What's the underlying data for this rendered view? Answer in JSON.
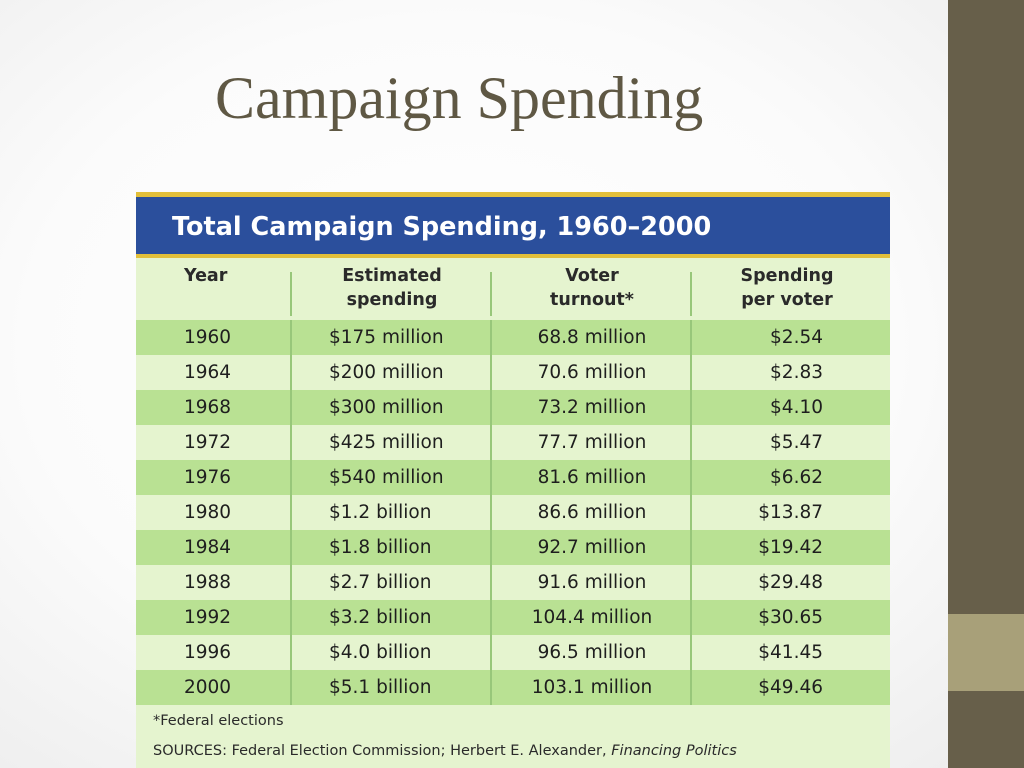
{
  "slide": {
    "title": "Campaign Spending"
  },
  "figure": {
    "title": "Total Campaign Spending, 1960–2000",
    "columns": [
      {
        "line1": "Year",
        "line2": ""
      },
      {
        "line1": "Estimated",
        "line2": "spending"
      },
      {
        "line1": "Voter",
        "line2": "turnout*"
      },
      {
        "line1": "Spending",
        "line2": "per voter"
      }
    ],
    "rows": [
      {
        "year": "1960",
        "spending": "$175 million",
        "turnout": "68.8 million",
        "per_voter": "$2.54"
      },
      {
        "year": "1964",
        "spending": "$200 million",
        "turnout": "70.6 million",
        "per_voter": "$2.83"
      },
      {
        "year": "1968",
        "spending": "$300 million",
        "turnout": "73.2 million",
        "per_voter": "$4.10"
      },
      {
        "year": "1972",
        "spending": "$425 million",
        "turnout": "77.7 million",
        "per_voter": "$5.47"
      },
      {
        "year": "1976",
        "spending": "$540 million",
        "turnout": "81.6 million",
        "per_voter": "$6.62"
      },
      {
        "year": "1980",
        "spending": "$1.2 billion",
        "turnout": "86.6 million",
        "per_voter": "$13.87"
      },
      {
        "year": "1984",
        "spending": "$1.8 billion",
        "turnout": "92.7 million",
        "per_voter": "$19.42"
      },
      {
        "year": "1988",
        "spending": "$2.7 billion",
        "turnout": "91.6 million",
        "per_voter": "$29.48"
      },
      {
        "year": "1992",
        "spending": "$3.2 billion",
        "turnout": "104.4 million",
        "per_voter": "$30.65"
      },
      {
        "year": "1996",
        "spending": "$4.0 billion",
        "turnout": "96.5 million",
        "per_voter": "$41.45"
      },
      {
        "year": "2000",
        "spending": "$5.1 billion",
        "turnout": "103.1 million",
        "per_voter": "$49.46"
      }
    ],
    "footnote": "*Federal elections",
    "sources_prefix": "SOURCES: Federal Election Commission; Herbert E. Alexander, ",
    "sources_title": "Financing Politics"
  },
  "colors": {
    "title_text": "#5f5844",
    "side_bar": "#675f4a",
    "side_accent": "#a8a079",
    "banner": "#2b4f9c",
    "banner_border": "#e2bf3a",
    "row_dark": "#b9e193",
    "row_light": "#e5f4cf"
  }
}
